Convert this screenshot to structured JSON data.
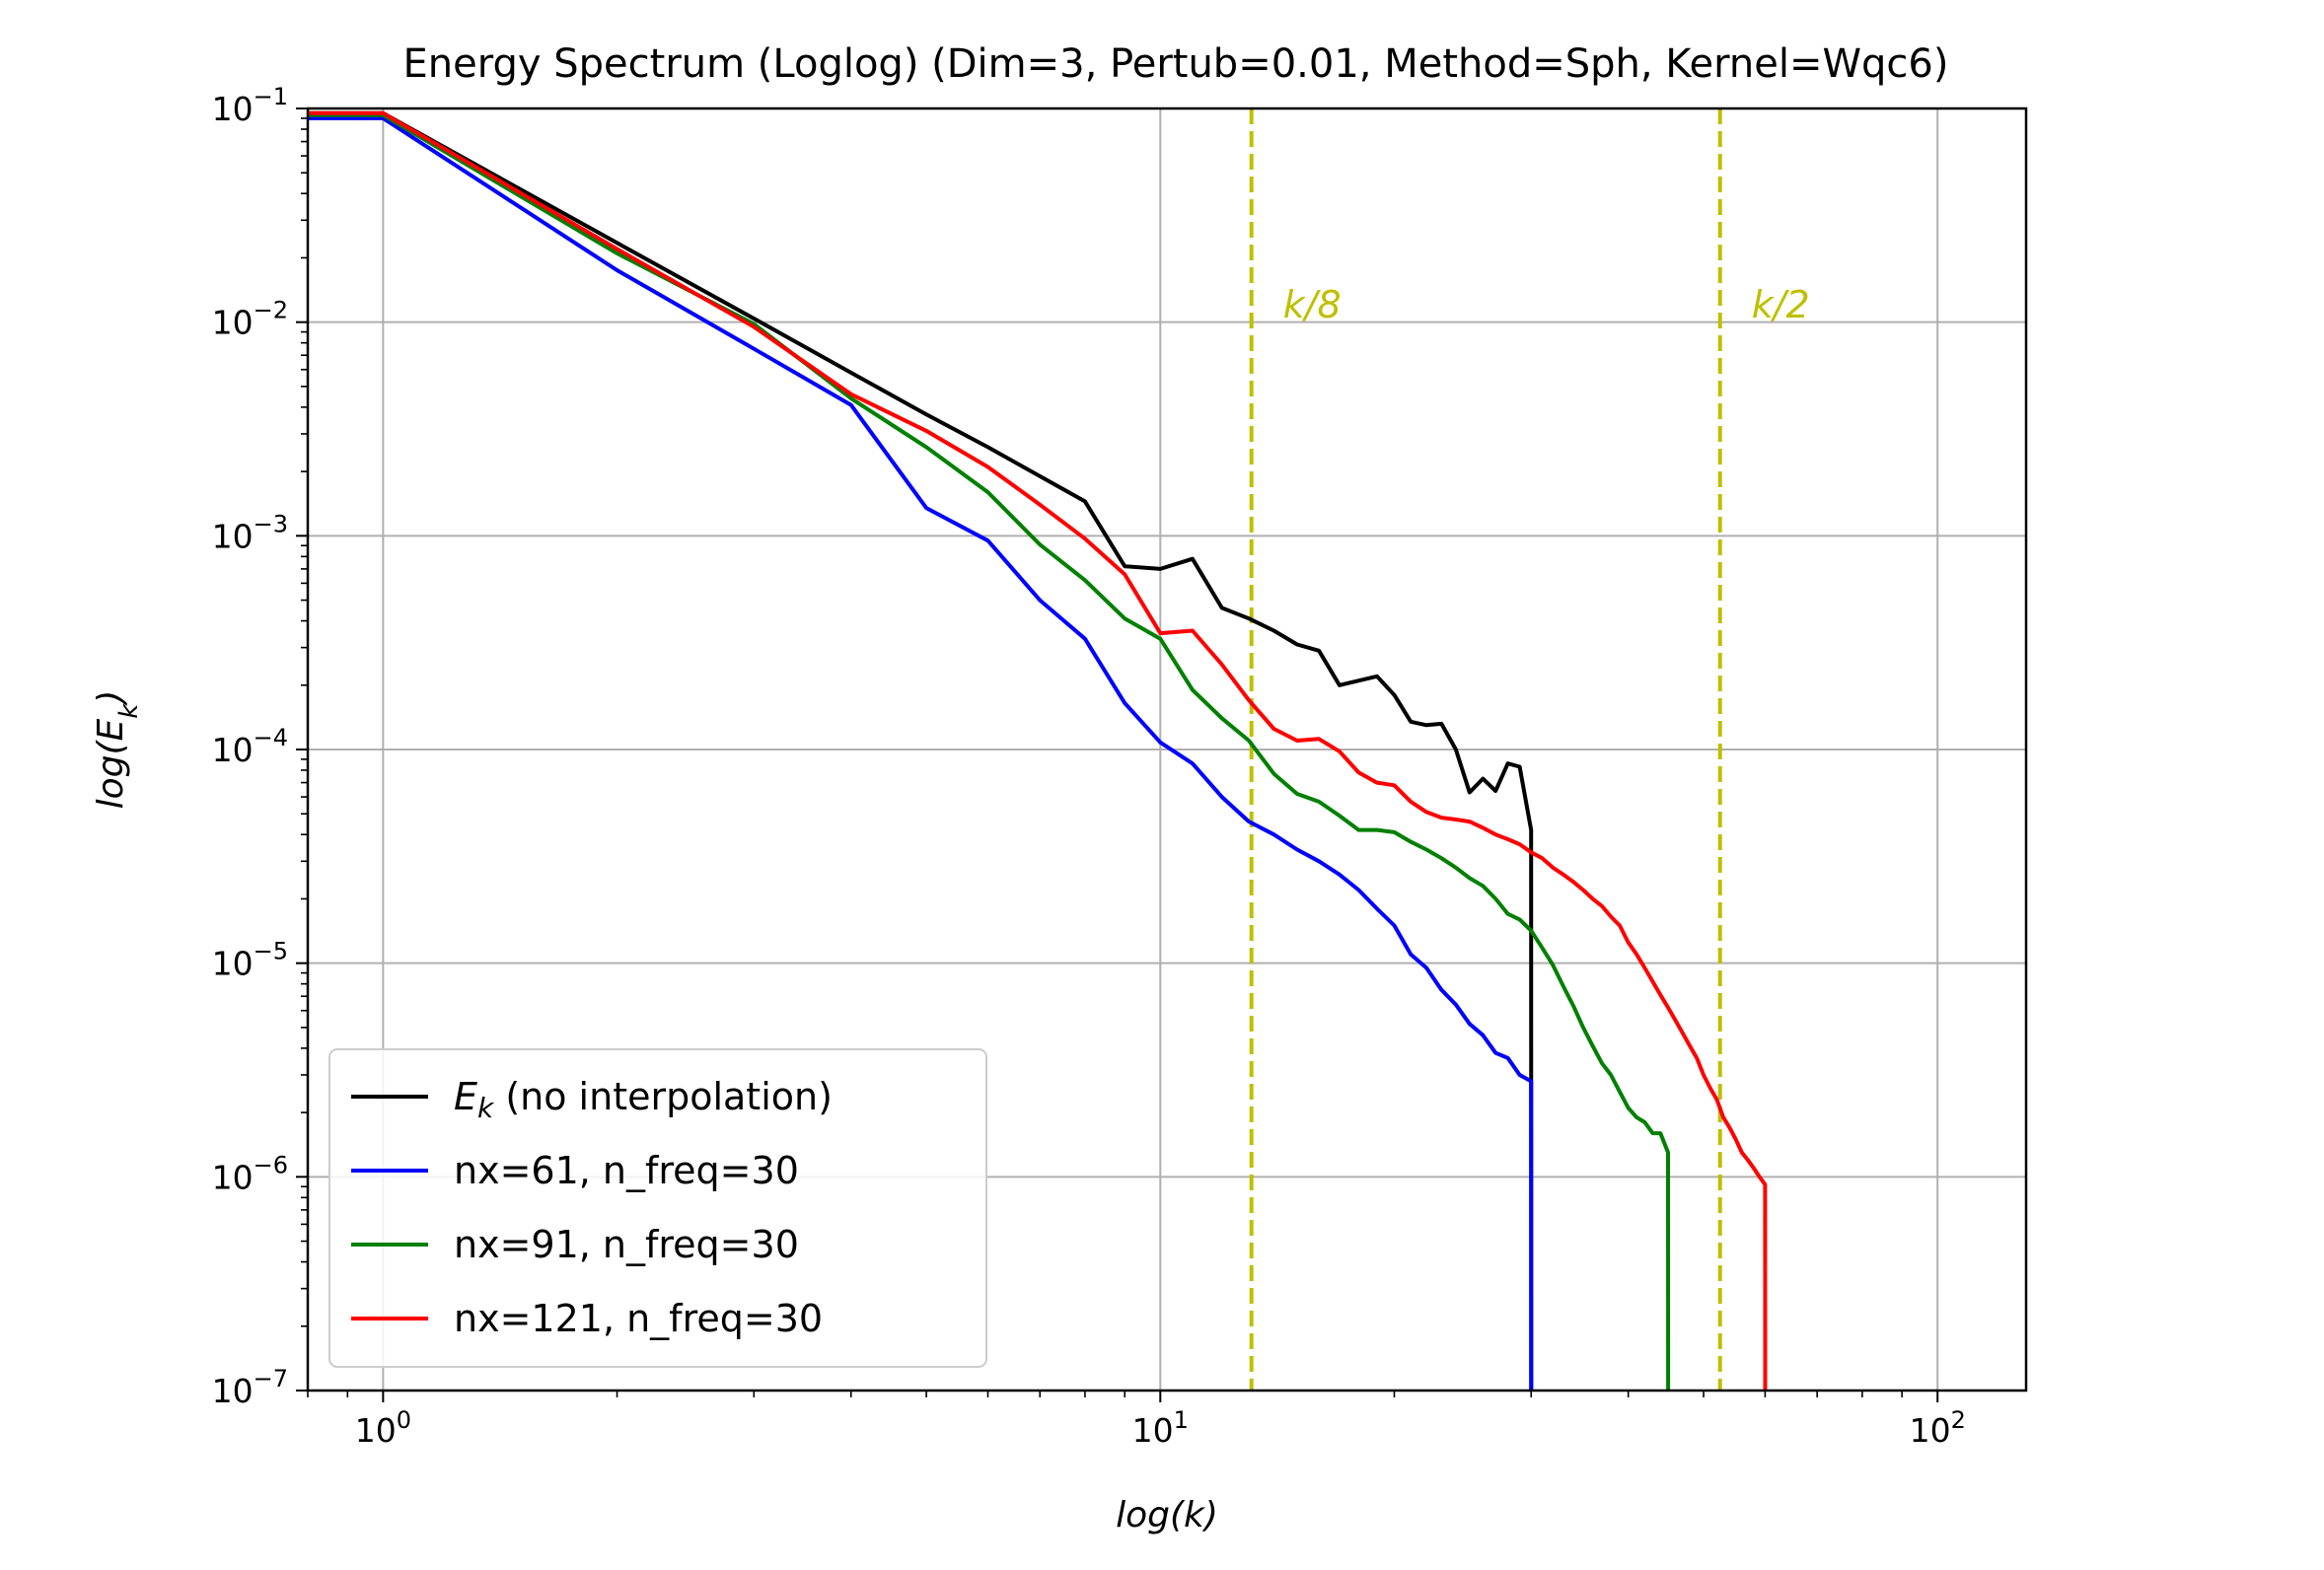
{
  "chart_data": {
    "type": "line",
    "title": "Energy Spectrum (Loglog) (Dim=3, Pertub=0.01, Method=Sph, Kernel=Wqc6)",
    "xlabel": "log(k)",
    "ylabel": "log(E_k)",
    "xscale": "log",
    "yscale": "log",
    "xlim": [
      0.8,
      130
    ],
    "ylim": [
      1e-07,
      0.1
    ],
    "grid": true,
    "legend_position": "lower-left",
    "x_ticks": [
      {
        "value": 1,
        "base": "10",
        "exp": "0"
      },
      {
        "value": 10,
        "base": "10",
        "exp": "1"
      },
      {
        "value": 100,
        "base": "10",
        "exp": "2"
      }
    ],
    "y_ticks": [
      {
        "value": 1e-07,
        "base": "10",
        "exp": "−7"
      },
      {
        "value": 1e-06,
        "base": "10",
        "exp": "−6"
      },
      {
        "value": 1e-05,
        "base": "10",
        "exp": "−5"
      },
      {
        "value": 0.0001,
        "base": "10",
        "exp": "−4"
      },
      {
        "value": 0.001,
        "base": "10",
        "exp": "−3"
      },
      {
        "value": 0.01,
        "base": "10",
        "exp": "−2"
      },
      {
        "value": 0.1,
        "base": "10",
        "exp": "−1"
      }
    ],
    "vlines": [
      {
        "x": 13.1,
        "label": "k/8",
        "color": "#bfbf00"
      },
      {
        "x": 52.5,
        "label": "k/2",
        "color": "#bfbf00"
      }
    ],
    "series": [
      {
        "name": "E_k (no interpolation)",
        "legend_base": "E",
        "legend_sub": "k",
        "legend_rest": " (no interpolation)",
        "color": "#000000",
        "x": [
          0.8,
          1,
          2,
          3,
          4,
          5,
          6,
          7,
          8,
          9,
          10,
          11,
          12,
          13,
          14,
          15,
          16,
          17,
          18,
          19,
          20,
          21,
          22,
          23,
          24,
          25,
          26,
          27,
          28,
          29,
          30,
          30.01
        ],
        "y": [
          0.095,
          0.095,
          0.0235,
          0.0104,
          0.0058,
          0.0037,
          0.0026,
          0.0019,
          0.00145,
          0.00072,
          0.0007,
          0.00078,
          0.00046,
          0.00041,
          0.00036,
          0.00031,
          0.00029,
          0.0002,
          0.00021,
          0.00022,
          0.00018,
          0.000135,
          0.00013,
          0.000132,
          0.0001,
          6.3e-05,
          7.3e-05,
          6.4e-05,
          8.6e-05,
          8.3e-05,
          4.2e-05,
          1e-07
        ]
      },
      {
        "name": "nx=61, n_freq=30",
        "color": "#0000ff",
        "x": [
          0.8,
          1,
          2,
          3,
          4,
          5,
          6,
          7,
          8,
          9,
          10,
          11,
          12,
          13,
          14,
          15,
          16,
          17,
          18,
          19,
          20,
          21,
          22,
          23,
          24,
          25,
          26,
          27,
          28,
          29,
          30,
          30.01
        ],
        "y": [
          0.09,
          0.09,
          0.0175,
          0.0075,
          0.0041,
          0.00135,
          0.00095,
          0.0005,
          0.00033,
          0.000165,
          0.000108,
          8.6e-05,
          6e-05,
          4.6e-05,
          4e-05,
          3.4e-05,
          3e-05,
          2.6e-05,
          2.2e-05,
          1.8e-05,
          1.5e-05,
          1.1e-05,
          9.5e-06,
          7.5e-06,
          6.4e-06,
          5.2e-06,
          4.6e-06,
          3.8e-06,
          3.6e-06,
          3e-06,
          2.8e-06,
          1e-07
        ]
      },
      {
        "name": "nx=91, n_freq=30",
        "color": "#008000",
        "x": [
          0.8,
          1,
          2,
          3,
          4,
          5,
          6,
          7,
          8,
          9,
          10,
          11,
          12,
          13,
          14,
          15,
          16,
          17,
          18,
          19,
          20,
          21,
          22,
          23,
          24,
          25,
          26,
          27,
          28,
          29,
          30,
          31,
          32,
          33,
          34,
          35,
          36,
          37,
          38,
          39,
          40,
          41,
          42,
          43,
          44,
          45,
          45.01
        ],
        "y": [
          0.093,
          0.093,
          0.021,
          0.0098,
          0.0044,
          0.0026,
          0.0016,
          0.00091,
          0.00062,
          0.00041,
          0.00033,
          0.00019,
          0.00014,
          0.00011,
          7.7e-05,
          6.2e-05,
          5.7e-05,
          4.9e-05,
          4.2e-05,
          4.2e-05,
          4.1e-05,
          3.7e-05,
          3.4e-05,
          3.1e-05,
          2.8e-05,
          2.5e-05,
          2.3e-05,
          2e-05,
          1.7e-05,
          1.6e-05,
          1.42e-05,
          1.18e-05,
          9.8e-06,
          7.8e-06,
          6.3e-06,
          5e-06,
          4.1e-06,
          3.4e-06,
          3e-06,
          2.5e-06,
          2.1e-06,
          1.9e-06,
          1.8e-06,
          1.6e-06,
          1.6e-06,
          1.3e-06,
          1e-07
        ]
      },
      {
        "name": "nx=121, n_freq=30",
        "color": "#ff0000",
        "x": [
          0.8,
          1,
          2,
          3,
          4,
          5,
          6,
          7,
          8,
          9,
          10,
          11,
          12,
          13,
          14,
          15,
          16,
          17,
          18,
          19,
          20,
          21,
          22,
          23,
          24,
          25,
          26,
          27,
          28,
          29,
          30,
          31,
          32,
          33,
          34,
          35,
          36,
          37,
          38,
          39,
          40,
          41,
          42,
          43,
          44,
          45,
          46,
          47,
          48,
          49,
          50,
          51,
          52,
          53,
          54,
          55,
          56,
          57,
          58,
          59,
          60,
          60.01
        ],
        "y": [
          0.095,
          0.095,
          0.022,
          0.0095,
          0.0046,
          0.0031,
          0.0021,
          0.0014,
          0.00097,
          0.00066,
          0.00035,
          0.00036,
          0.00025,
          0.00017,
          0.000125,
          0.00011,
          0.000112,
          9.8e-05,
          7.8e-05,
          7e-05,
          6.8e-05,
          5.7e-05,
          5.1e-05,
          4.8e-05,
          4.7e-05,
          4.6e-05,
          4.3e-05,
          4e-05,
          3.8e-05,
          3.6e-05,
          3.3e-05,
          3.1e-05,
          2.8e-05,
          2.6e-05,
          2.4e-05,
          2.2e-05,
          2e-05,
          1.85e-05,
          1.65e-05,
          1.5e-05,
          1.25e-05,
          1.1e-05,
          9.5e-06,
          8.2e-06,
          7.1e-06,
          6.2e-06,
          5.4e-06,
          4.7e-06,
          4.1e-06,
          3.6e-06,
          3e-06,
          2.6e-06,
          2.3e-06,
          1.9e-06,
          1.7e-06,
          1.5e-06,
          1.3e-06,
          1.2e-06,
          1.1e-06,
          1e-06,
          9.2e-07,
          1e-07
        ]
      }
    ]
  }
}
